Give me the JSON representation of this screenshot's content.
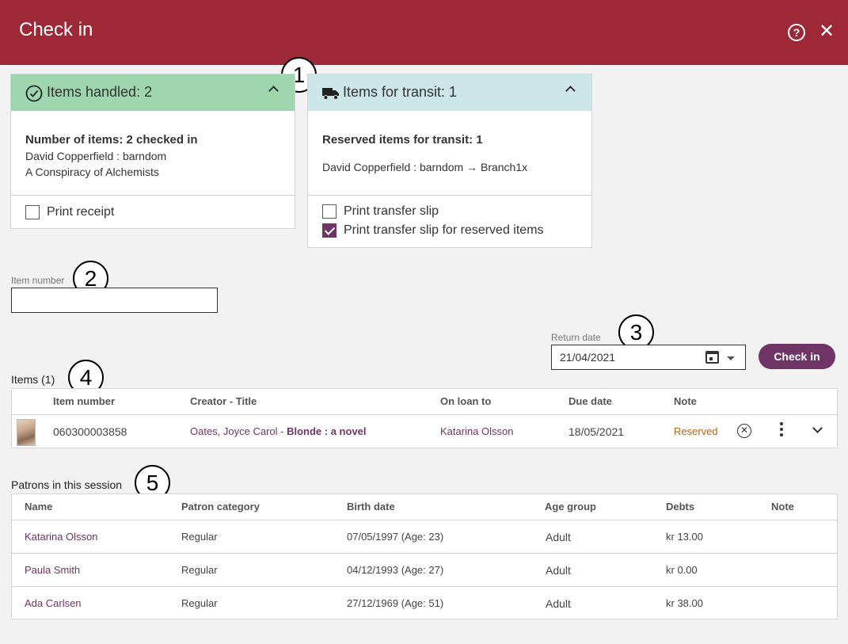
{
  "dialog": {
    "title": "Check in"
  },
  "callouts": [
    "1",
    "2",
    "3",
    "4",
    "5"
  ],
  "handled": {
    "title": "Items handled: 2",
    "summary": "Number of items: 2 checked in",
    "items": [
      "David Copperfield : barndom",
      "A Conspiracy of Alchemists"
    ],
    "print_receipt": "Print receipt",
    "print_receipt_checked": false,
    "color": "#9ed6ae"
  },
  "transit": {
    "title": "Items for transit: 1",
    "summary": "Reserved items for transit: 1",
    "route": "David Copperfield : barndom → Branch1x",
    "print_slip": "Print transfer slip",
    "print_slip_checked": false,
    "print_slip_reserved": "Print transfer slip for reserved items",
    "print_slip_reserved_checked": true,
    "color": "#cde6e8"
  },
  "item_number": {
    "label": "Item number",
    "value": ""
  },
  "return_date": {
    "label": "Return date",
    "value": "21/04/2021"
  },
  "check_in_button": "Check in",
  "items_table": {
    "title": "Items (1)",
    "columns": [
      "Item number",
      "Creator - Title",
      "On loan to",
      "Due date",
      "Note"
    ],
    "rows": [
      {
        "item_number": "060300003858",
        "creator": "Oates, Joyce Carol",
        "separator": " - ",
        "title": "Blonde : a novel",
        "on_loan_to": "Katarina Olsson",
        "due_date": "18/05/2021",
        "note": "Reserved"
      }
    ]
  },
  "patrons_table": {
    "title": "Patrons in this session",
    "columns": [
      "Name",
      "Patron category",
      "Birth date",
      "Age group",
      "Debts",
      "Note"
    ],
    "rows": [
      {
        "name": "Katarina Olsson",
        "category": "Regular",
        "birth": "07/05/1997",
        "age": "(Age: 23)",
        "age_group": "Adult",
        "debts": "kr 13.00",
        "note": ""
      },
      {
        "name": "Paula Smith",
        "category": "Regular",
        "birth": "04/12/1993",
        "age": "(Age: 27)",
        "age_group": "Adult",
        "debts": "kr 0.00",
        "note": ""
      },
      {
        "name": "Ada Carlsen",
        "category": "Regular",
        "birth": "27/12/1969",
        "age": "(Age: 51)",
        "age_group": "Adult",
        "debts": "kr 38.00",
        "note": ""
      }
    ]
  }
}
